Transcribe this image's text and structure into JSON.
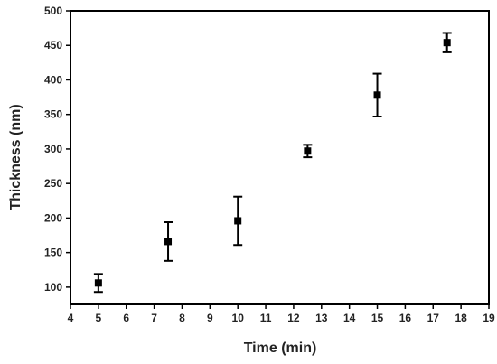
{
  "chart_data": {
    "type": "scatter",
    "xlabel": "Time (min)",
    "ylabel": "Thickness (nm)",
    "xlim": [
      4,
      19
    ],
    "ylim": [
      75,
      500
    ],
    "xticks": [
      4,
      5,
      6,
      7,
      8,
      9,
      10,
      11,
      12,
      13,
      14,
      15,
      16,
      17,
      18,
      19
    ],
    "yticks": [
      100,
      150,
      200,
      250,
      300,
      350,
      400,
      450,
      500
    ],
    "grid": false,
    "marker": "square",
    "color": "#000000",
    "points": [
      {
        "x": 5,
        "y": 106,
        "err": 13
      },
      {
        "x": 7.5,
        "y": 166,
        "err": 28
      },
      {
        "x": 10,
        "y": 196,
        "err": 35
      },
      {
        "x": 12.5,
        "y": 297,
        "err": 9
      },
      {
        "x": 15,
        "y": 378,
        "err": 31
      },
      {
        "x": 17.5,
        "y": 454,
        "err": 14
      }
    ]
  }
}
